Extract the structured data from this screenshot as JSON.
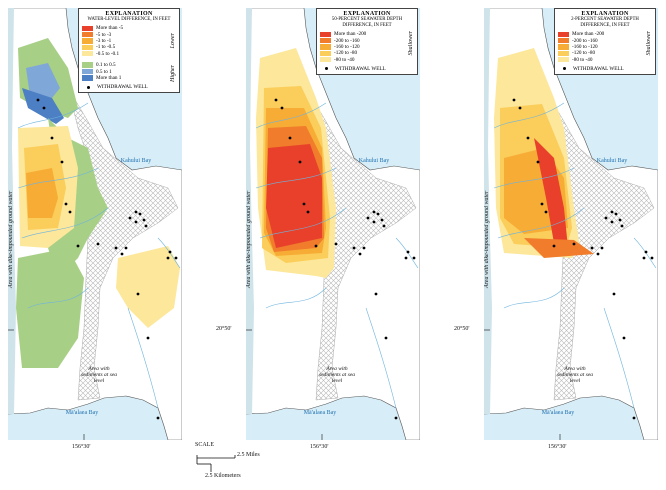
{
  "panels": [
    {
      "explanation_title": "EXPLANATION",
      "legend_heading": "WATER-LEVEL DIFFERENCE, IN FEET",
      "legend_items": [
        {
          "label": "More than -5",
          "color": "#e8402a"
        },
        {
          "label": "-5 to -3",
          "color": "#f07c2c"
        },
        {
          "label": "-3 to -1",
          "color": "#f7ac35"
        },
        {
          "label": "-1 to -0.5",
          "color": "#fbcd5a"
        },
        {
          "label": "-0.5 to -0.1",
          "color": "#fce79a"
        },
        {
          "label": "0.1 to 0.5",
          "color": "#a8cf86"
        },
        {
          "label": "0.5 to 1",
          "color": "#7fa7d8"
        },
        {
          "label": "More than 1",
          "color": "#4c7fc4"
        }
      ],
      "lower_label": "Lower",
      "higher_label": "Higher",
      "well_label": "WITHDRAWAL WELL",
      "side_text": "Area with dike-impounded ground water",
      "kahului_label": "Kahului Bay",
      "maalaea_label": "Mā'alaea Bay",
      "sediment_label": "Area with sediments at sea level",
      "lat_label": "20°50'",
      "lon_label": "156°30'"
    },
    {
      "explanation_title": "EXPLANATION",
      "legend_heading": "50-PERCENT SEAWATER DEPTH DIFFERENCE, IN FEET",
      "legend_items": [
        {
          "label": "More than -200",
          "color": "#e8402a"
        },
        {
          "label": "-200 to -160",
          "color": "#f07c2c"
        },
        {
          "label": "-160 to -120",
          "color": "#f7ac35"
        },
        {
          "label": "-120 to -80",
          "color": "#fbcd5a"
        },
        {
          "label": "-80 to -40",
          "color": "#fce79a"
        }
      ],
      "shallower_label": "Shallower",
      "well_label": "WITHDRAWAL WELL",
      "side_text": "Area with dike-impounded ground water",
      "kahului_label": "Kahului Bay",
      "maalaea_label": "Mā'alaea Bay",
      "sediment_label": "Area with sediments at sea level",
      "lat_label": "20°50'",
      "lon_label": "156°30'"
    },
    {
      "explanation_title": "EXPLANATION",
      "legend_heading": "2-PERCENT SEAWATER DEPTH DIFFERENCE, IN FEET",
      "legend_items": [
        {
          "label": "More than -200",
          "color": "#e8402a"
        },
        {
          "label": "-200 to -160",
          "color": "#f07c2c"
        },
        {
          "label": "-160 to -120",
          "color": "#f7ac35"
        },
        {
          "label": "-120 to -80",
          "color": "#fbcd5a"
        },
        {
          "label": "-80 to -40",
          "color": "#fce79a"
        }
      ],
      "shallower_label": "Shallower",
      "well_label": "WITHDRAWAL WELL",
      "side_text": "Area with dike-impounded ground water",
      "kahului_label": "Kahului Bay",
      "maalaea_label": "Mā'alaea Bay",
      "sediment_label": "Area with sediments at sea level",
      "lat_label": "20°50'",
      "lon_label": "156°30'"
    }
  ],
  "scale": {
    "title": "SCALE",
    "miles": "2.5 Miles",
    "kilometers": "2.5 Kilometers"
  },
  "colors": {
    "ocean": "#d7eef8",
    "land": "#ffffff",
    "dike_zone": "#cfe3ea",
    "sediment_hatch": "#b9b9b9",
    "stream": "#6fb4de"
  }
}
